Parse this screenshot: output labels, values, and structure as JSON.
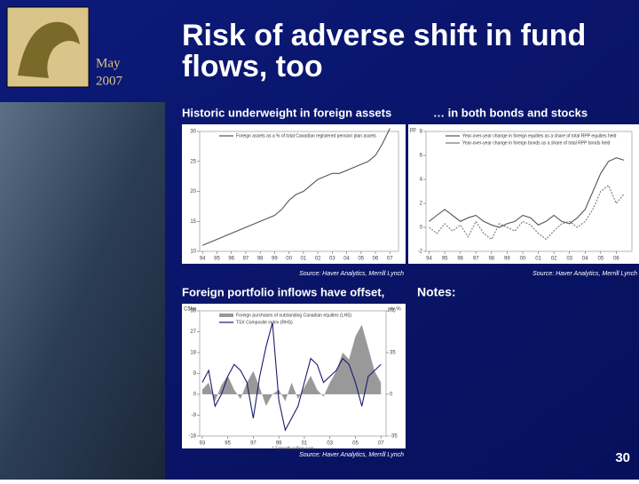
{
  "slide": {
    "logo_text": [
      "May",
      "2007"
    ],
    "title": [
      "Risk of adverse shift in fund",
      "flows, too"
    ],
    "notes": "Notes:",
    "page": "30"
  },
  "chart_data": [
    {
      "type": "line",
      "title": "Historic underweight in foreign assets",
      "source": "Source: Haver Analytics, Merrill Lynch",
      "x": [
        1994,
        1994.5,
        1995,
        1995.5,
        1996,
        1996.5,
        1997,
        1997.5,
        1998,
        1998.5,
        1999,
        1999.5,
        2000,
        2000.5,
        2001,
        2001.5,
        2002,
        2002.5,
        2003,
        2003.5,
        2004,
        2004.5,
        2005,
        2005.5,
        2006,
        2006.5,
        2007
      ],
      "xlim": [
        1993.8,
        2007.6
      ],
      "xticks": [
        {
          "value": 1994,
          "label": "94"
        },
        {
          "value": 1995,
          "label": "95"
        },
        {
          "value": 1996,
          "label": "96"
        },
        {
          "value": 1997,
          "label": "97"
        },
        {
          "value": 1998,
          "label": "98"
        },
        {
          "value": 1999,
          "label": "99"
        },
        {
          "value": 2000,
          "label": "00"
        },
        {
          "value": 2001,
          "label": "01"
        },
        {
          "value": 2002,
          "label": "02"
        },
        {
          "value": 2003,
          "label": "03"
        },
        {
          "value": 2004,
          "label": "04"
        },
        {
          "value": 2005,
          "label": "05"
        },
        {
          "value": 2006,
          "label": "06"
        },
        {
          "value": 2007,
          "label": "07"
        }
      ],
      "ylim": [
        10,
        30
      ],
      "yticks": [
        10,
        15,
        20,
        25,
        30
      ],
      "series": [
        {
          "name": "Foreign assets as a % of total Canadian registered pension plan assets",
          "color": "#555555",
          "values": [
            11,
            11.5,
            12,
            12.5,
            13,
            13.5,
            14,
            14.5,
            15,
            15.5,
            16,
            17,
            18.5,
            19.5,
            20,
            21,
            22,
            22.5,
            23,
            23,
            23.5,
            24,
            24.5,
            25,
            26,
            28,
            30.5
          ]
        }
      ]
    },
    {
      "type": "line",
      "title": "… in both bonds and stocks",
      "source": "Source: Haver Analytics, Merrill Lynch",
      "y_label": "pp",
      "x": [
        1994,
        1994.5,
        1995,
        1995.5,
        1996,
        1996.5,
        1997,
        1997.5,
        1998,
        1998.5,
        1999,
        1999.5,
        2000,
        2000.5,
        2001,
        2001.5,
        2002,
        2002.5,
        2003,
        2003.5,
        2004,
        2004.5,
        2005,
        2005.5,
        2006,
        2006.5
      ],
      "xlim": [
        1993.8,
        2007
      ],
      "xticks": [
        {
          "value": 1994,
          "label": "94"
        },
        {
          "value": 1995,
          "label": "95"
        },
        {
          "value": 1996,
          "label": "96"
        },
        {
          "value": 1997,
          "label": "97"
        },
        {
          "value": 1998,
          "label": "98"
        },
        {
          "value": 1999,
          "label": "99"
        },
        {
          "value": 2000,
          "label": "00"
        },
        {
          "value": 2001,
          "label": "01"
        },
        {
          "value": 2002,
          "label": "02"
        },
        {
          "value": 2003,
          "label": "03"
        },
        {
          "value": 2004,
          "label": "04"
        },
        {
          "value": 2005,
          "label": "05"
        },
        {
          "value": 2006,
          "label": "06"
        }
      ],
      "ylim": [
        -2,
        8
      ],
      "yticks": [
        -2,
        0,
        2,
        4,
        6,
        8
      ],
      "series": [
        {
          "name": "Year-over-year change in foreign equities as a share of total RPP equities held",
          "color": "#555555",
          "dash": false,
          "values": [
            0.5,
            1,
            1.5,
            1,
            0.5,
            0.8,
            1,
            0.5,
            0.2,
            0,
            0.3,
            0.5,
            1,
            0.8,
            0.2,
            0.5,
            1,
            0.5,
            0.3,
            0.8,
            1.5,
            3,
            4.5,
            5.5,
            5.8,
            5.6
          ]
        },
        {
          "name": "Year-over-year change in foreign bonds as a share of total RPP bonds held",
          "color": "#777777",
          "dash": true,
          "values": [
            0,
            -0.5,
            0.3,
            -0.3,
            0.2,
            -0.8,
            0.5,
            -0.5,
            -1,
            0.3,
            0,
            -0.3,
            0.5,
            0.2,
            -0.5,
            -1,
            -0.3,
            0.3,
            0.5,
            0,
            0.5,
            1.5,
            3,
            3.5,
            2,
            2.8
          ]
        }
      ]
    },
    {
      "type": "area_line",
      "title": "Foreign portfolio inflows have offset,",
      "source": "Source: Haver Analytics, Merrill Lynch",
      "y_label": "C$bn",
      "y2_label": "y/y %",
      "note": "* 3 month rolling sum",
      "x": [
        1993,
        1993.5,
        1994,
        1994.5,
        1995,
        1995.5,
        1996,
        1996.5,
        1997,
        1997.5,
        1998,
        1998.5,
        1999,
        1999.5,
        2000,
        2000.5,
        2001,
        2001.5,
        2002,
        2002.5,
        2003,
        2003.5,
        2004,
        2004.5,
        2005,
        2005.5,
        2006,
        2006.5,
        2007
      ],
      "xlim": [
        1992.8,
        2007.4
      ],
      "xticks": [
        {
          "value": 1993,
          "label": "93"
        },
        {
          "value": 1995,
          "label": "95"
        },
        {
          "value": 1997,
          "label": "97"
        },
        {
          "value": 1999,
          "label": "99"
        },
        {
          "value": 2001,
          "label": "01"
        },
        {
          "value": 2003,
          "label": "03"
        },
        {
          "value": 2005,
          "label": "05"
        },
        {
          "value": 2007,
          "label": "07"
        }
      ],
      "ylim": [
        -18,
        36
      ],
      "yticks": [
        -18,
        -9,
        0,
        9,
        18,
        27,
        36
      ],
      "y2lim": [
        -35,
        70
      ],
      "y2ticks": [
        -35,
        0,
        35,
        70
      ],
      "series": [
        {
          "name": "Foreign purchases of outstanding Canadian equities (LHS)",
          "color": "#999999",
          "kind": "area",
          "values": [
            2,
            5,
            -3,
            4,
            8,
            2,
            -2,
            5,
            10,
            3,
            -5,
            0,
            2,
            -3,
            5,
            -2,
            3,
            8,
            2,
            -1,
            5,
            10,
            18,
            15,
            25,
            30,
            20,
            10,
            5
          ]
        },
        {
          "name": "TSX Composite index (RHS)",
          "color": "#1a1a6e",
          "kind": "line",
          "axis": "y2",
          "values": [
            10,
            20,
            -10,
            0,
            15,
            25,
            20,
            10,
            -20,
            15,
            40,
            60,
            -5,
            -30,
            -20,
            -10,
            10,
            30,
            25,
            10,
            15,
            20,
            30,
            25,
            10,
            -10,
            15,
            20,
            25
          ]
        }
      ]
    }
  ]
}
